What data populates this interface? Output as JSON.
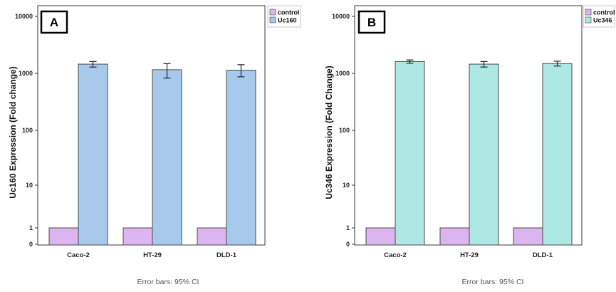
{
  "chart_data": [
    {
      "type": "bar",
      "panel_label": "A",
      "categories": [
        "Caco-2",
        "HT-29",
        "DLD-1"
      ],
      "series": [
        {
          "name": "control",
          "values": [
            1,
            1,
            1
          ],
          "color": "#dcb4ef"
        },
        {
          "name": "Uc160",
          "values": [
            1250,
            980,
            960
          ],
          "error_low": [
            1100,
            680,
            720
          ],
          "error_high": [
            1400,
            1280,
            1220
          ],
          "color": "#a6c9ec"
        }
      ],
      "ylabel": "Uc160 Expression (Fold change)",
      "yscale": "log",
      "yticks": [
        "0",
        "1",
        "10",
        "100",
        "1000",
        "10000"
      ],
      "legend_position": "top-right",
      "footnote": "Error bars: 95% CI"
    },
    {
      "type": "bar",
      "panel_label": "B",
      "categories": [
        "Caco-2",
        "HT-29",
        "DLD-1"
      ],
      "series": [
        {
          "name": "control",
          "values": [
            1,
            1,
            1
          ],
          "color": "#dcb4ef"
        },
        {
          "name": "Uc346",
          "values": [
            1400,
            1250,
            1280
          ],
          "error_low": [
            1300,
            1100,
            1150
          ],
          "error_high": [
            1500,
            1400,
            1420
          ],
          "color": "#aee8e2"
        }
      ],
      "ylabel": "Uc346 Expression (Fold Change)",
      "yscale": "log",
      "yticks": [
        "0",
        "1",
        "10",
        "100",
        "1000",
        "10000"
      ],
      "legend_position": "top-right",
      "footnote": "Error bars: 95% CI"
    }
  ]
}
